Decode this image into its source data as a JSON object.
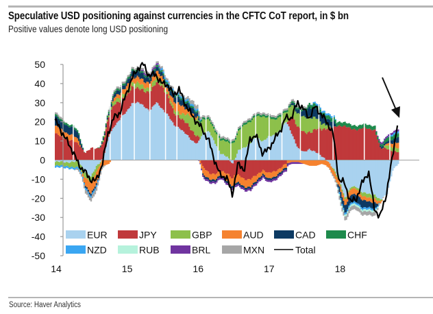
{
  "header": {
    "title": "Speculative USD positioning against currencies in the CFTC CoT report, in $ bn",
    "subtitle": "Positive values denote long USD positioning"
  },
  "footer": {
    "source": "Source: Haver Analytics"
  },
  "chart_data": {
    "type": "bar",
    "stacked": true,
    "title": "Speculative USD positioning against currencies in the CFTC CoT report, in $ bn",
    "subtitle": "Positive values denote long USD positioning",
    "xlabel": "",
    "ylabel": "",
    "ylim": [
      -50,
      50
    ],
    "yticks": [
      50,
      40,
      30,
      20,
      10,
      0,
      -10,
      -20,
      -30,
      -40,
      -50
    ],
    "xticks": [
      "14",
      "15",
      "16",
      "17",
      "18"
    ],
    "xlim": [
      2014.0,
      2018.9
    ],
    "grid": false,
    "legend_position": "bottom-inside",
    "annotation": "arrow pointing to latest value",
    "x": [
      2014.0,
      2014.08,
      2014.17,
      2014.25,
      2014.33,
      2014.42,
      2014.5,
      2014.58,
      2014.67,
      2014.75,
      2014.83,
      2014.92,
      2015.0,
      2015.08,
      2015.17,
      2015.25,
      2015.33,
      2015.42,
      2015.5,
      2015.58,
      2015.67,
      2015.75,
      2015.83,
      2015.92,
      2016.0,
      2016.08,
      2016.17,
      2016.25,
      2016.33,
      2016.42,
      2016.5,
      2016.58,
      2016.67,
      2016.75,
      2016.83,
      2016.92,
      2017.0,
      2017.08,
      2017.17,
      2017.25,
      2017.33,
      2017.42,
      2017.5,
      2017.58,
      2017.67,
      2017.75,
      2017.83,
      2017.92,
      2018.0,
      2018.08,
      2018.17,
      2018.25,
      2018.33,
      2018.42,
      2018.5,
      2018.58,
      2018.67,
      2018.75,
      2018.83
    ],
    "colors": {
      "EUR": "#a9d2ef",
      "JPY": "#c0393b",
      "GBP": "#8dc04b",
      "AUD": "#f5822f",
      "CAD": "#0d3a63",
      "CHF": "#1e8a4c",
      "NZD": "#3aa6f2",
      "RUB": "#b6f2dc",
      "BRL": "#7034a0",
      "MXN": "#a6a6a6",
      "Total": "#000000"
    },
    "series": [
      {
        "name": "EUR",
        "values": [
          -1,
          -1,
          -1,
          -1,
          -1,
          -6,
          -9,
          -3,
          1,
          12,
          18,
          22,
          25,
          30,
          30,
          28,
          26,
          30,
          27,
          24,
          18,
          17,
          14,
          10,
          9,
          14,
          15,
          9,
          3,
          2,
          -2,
          5,
          7,
          9,
          12,
          10,
          12,
          13,
          16,
          20,
          14,
          6,
          4,
          6,
          4,
          2,
          0,
          -5,
          -10,
          -20,
          -14,
          -14,
          -17,
          -18,
          -18,
          -21,
          -18,
          -5,
          -2
        ]
      },
      {
        "name": "JPY",
        "values": [
          14,
          12,
          11,
          10,
          8,
          4,
          6,
          6,
          8,
          10,
          12,
          9,
          8,
          9,
          7,
          8,
          10,
          10,
          12,
          10,
          6,
          6,
          6,
          5,
          4,
          -4,
          -7,
          -7,
          -6,
          -7,
          -8,
          -8,
          -10,
          -10,
          -8,
          -5,
          -7,
          -6,
          -4,
          -2,
          10,
          11,
          10,
          9,
          12,
          14,
          17,
          17,
          18,
          18,
          16,
          16,
          17,
          16,
          16,
          6,
          6,
          5,
          4
        ]
      },
      {
        "name": "GBP",
        "values": [
          -2,
          -2,
          -2,
          -3,
          -3,
          -3,
          -3,
          -3,
          1,
          1,
          2,
          2,
          2,
          2,
          3,
          2,
          2,
          3,
          2,
          1,
          2,
          2,
          4,
          7,
          9,
          7,
          6,
          6,
          7,
          8,
          9,
          10,
          12,
          11,
          11,
          13,
          10,
          8,
          7,
          5,
          6,
          7,
          8,
          8,
          6,
          3,
          2,
          -1,
          -1,
          -1,
          -1,
          -1,
          -2,
          -2,
          -2,
          -1,
          2,
          2,
          2
        ]
      },
      {
        "name": "AUD",
        "values": [
          4,
          4,
          3,
          3,
          2,
          -4,
          -6,
          -6,
          -3,
          -2,
          2,
          2,
          3,
          3,
          3,
          3,
          3,
          3,
          3,
          2,
          4,
          5,
          3,
          2,
          1,
          -4,
          -3,
          -3,
          -2,
          -4,
          -4,
          -4,
          -4,
          -4,
          -3,
          -2,
          -3,
          -3,
          -2,
          -2,
          -1,
          -1,
          -2,
          -3,
          -3,
          -2,
          -3,
          -3,
          -3,
          -3,
          -3,
          -3,
          -2,
          -2,
          -2,
          -1,
          1,
          2,
          3
        ]
      },
      {
        "name": "CAD",
        "values": [
          5,
          4,
          4,
          4,
          3,
          -1,
          -1,
          -1,
          1,
          1,
          2,
          2,
          2,
          3,
          3,
          3,
          2,
          2,
          2,
          2,
          3,
          3,
          3,
          3,
          2,
          -1,
          -1,
          -1,
          -1,
          -1,
          -1,
          -1,
          -1,
          -1,
          -1,
          -1,
          -1,
          -1,
          -1,
          -1,
          1,
          2,
          3,
          5,
          5,
          4,
          3,
          3,
          -3,
          -4,
          -4,
          -4,
          -4,
          -3,
          -3,
          1,
          1,
          2,
          3
        ]
      },
      {
        "name": "CHF",
        "values": [
          1,
          1,
          1,
          1,
          1,
          0,
          0,
          0,
          1,
          1,
          1,
          1,
          1,
          1,
          1,
          1,
          1,
          1,
          1,
          1,
          1,
          1,
          1,
          1,
          1,
          1,
          1,
          1,
          1,
          1,
          1,
          1,
          1,
          1,
          1,
          1,
          1,
          1,
          1,
          1,
          1,
          1,
          1,
          2,
          2,
          2,
          2,
          2,
          2,
          2,
          2,
          2,
          2,
          2,
          2,
          1,
          2,
          2,
          2
        ]
      },
      {
        "name": "NZD",
        "values": [
          -1,
          -1,
          -1,
          -1,
          -1,
          -1,
          -1,
          -1,
          0,
          0,
          0,
          0,
          0,
          0,
          0,
          0,
          0,
          0,
          1,
          1,
          1,
          1,
          1,
          1,
          1,
          0,
          0,
          0,
          0,
          0,
          0,
          0,
          0,
          0,
          0,
          0,
          0,
          0,
          0,
          0,
          0,
          0,
          0,
          0,
          1,
          1,
          1,
          1,
          -1,
          -1,
          -1,
          -1,
          -1,
          -1,
          -1,
          0,
          0,
          1,
          1
        ]
      },
      {
        "name": "RUB",
        "values": [
          0,
          0,
          0,
          0,
          0,
          0,
          0,
          0,
          0,
          0,
          0,
          0,
          0,
          0,
          0,
          0,
          0,
          0,
          0,
          0,
          0,
          0,
          0,
          0,
          0,
          0,
          0,
          0,
          0,
          0,
          0,
          0,
          0,
          0,
          0,
          0,
          0,
          0,
          0,
          0,
          0,
          0,
          0,
          0,
          0,
          0,
          0,
          0,
          -1,
          -1,
          -1,
          -1,
          -1,
          -1,
          -1,
          0,
          0,
          0,
          0
        ]
      },
      {
        "name": "BRL",
        "values": [
          0,
          0,
          0,
          0,
          0,
          0,
          0,
          0,
          0,
          0,
          0,
          0,
          0,
          0,
          0,
          1,
          1,
          1,
          0,
          0,
          0,
          0,
          0,
          0,
          0,
          -1,
          -1,
          -1,
          -1,
          -1,
          -1,
          -1,
          -1,
          -1,
          -1,
          -1,
          -1,
          -1,
          -1,
          -1,
          -1,
          -1,
          0,
          0,
          0,
          0,
          0,
          0,
          0,
          0,
          0,
          0,
          0,
          0,
          0,
          1,
          1,
          1,
          1
        ]
      },
      {
        "name": "MXN",
        "values": [
          1,
          1,
          0,
          0,
          -1,
          -2,
          -2,
          -2,
          -1,
          1,
          1,
          1,
          1,
          1,
          1,
          1,
          1,
          1,
          1,
          1,
          1,
          1,
          1,
          2,
          2,
          1,
          1,
          1,
          1,
          1,
          1,
          1,
          1,
          1,
          1,
          1,
          1,
          1,
          1,
          1,
          1,
          1,
          1,
          0,
          0,
          0,
          0,
          -1,
          -2,
          -2,
          -2,
          -2,
          -2,
          -2,
          -2,
          0,
          0,
          0,
          0
        ]
      },
      {
        "name": "Total",
        "type": "line",
        "values": [
          21,
          16,
          10,
          5,
          -2,
          -6,
          -10,
          -11,
          -2,
          14,
          22,
          25,
          34,
          42,
          48,
          50,
          44,
          45,
          40,
          40,
          34,
          37,
          30,
          24,
          20,
          16,
          10,
          0,
          -8,
          -9,
          -18,
          -2,
          -5,
          11,
          13,
          4,
          5,
          10,
          15,
          22,
          22,
          30,
          27,
          22,
          28,
          24,
          20,
          14,
          -10,
          -12,
          -22,
          -20,
          -12,
          -6,
          -25,
          -30,
          -18,
          0,
          20
        ]
      }
    ],
    "legend": [
      "EUR",
      "JPY",
      "GBP",
      "AUD",
      "CAD",
      "CHF",
      "NZD",
      "RUB",
      "BRL",
      "MXN",
      "Total"
    ]
  }
}
